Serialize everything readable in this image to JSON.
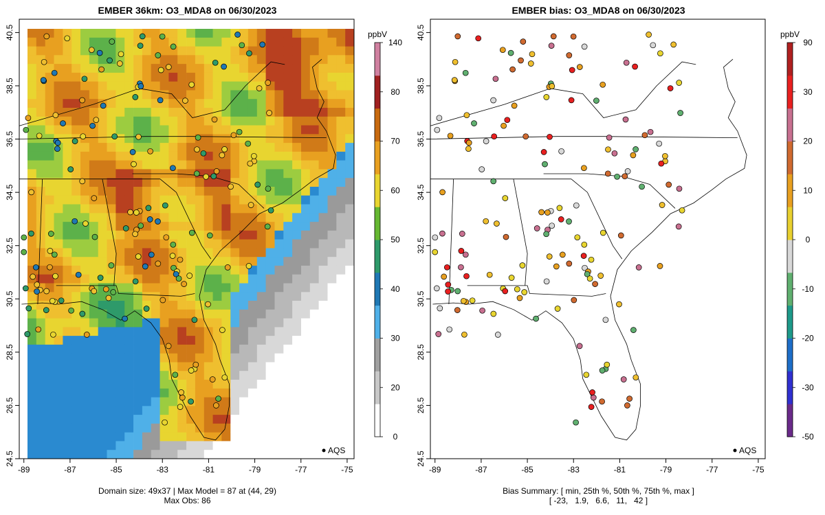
{
  "left_panel": {
    "title": "EMBER 36km: O3_MDA8 on 06/30/2023",
    "caption_line1": "Domain size: 49x37 | Max Model = 87 at (44, 29)",
    "caption_line2": "Max Obs: 86",
    "legend_label": "AQS",
    "colorbar_unit": "ppbV",
    "colorbar_ticks": [
      "140",
      "80",
      "70",
      "60",
      "50",
      "40",
      "30",
      "20",
      "0"
    ],
    "colorbar_colors": [
      "#ffffff",
      "#c8c8c8",
      "#a0a0a0",
      "#4fb0e8",
      "#1f78b4",
      "#2e9a6a",
      "#66b832",
      "#e8d530",
      "#e8a020",
      "#c86a10",
      "#a02020",
      "#d080a0"
    ]
  },
  "right_panel": {
    "title": "EMBER bias: O3_MDA8 on 06/30/2023",
    "caption_line1": "Bias Summary: [ min, 25th %, 50th %, 75th %, max ]",
    "caption_line2": "[ -23,   1.9,   6.6,   11,   42 ]",
    "legend_label": "AQS",
    "colorbar_unit": "ppbV",
    "colorbar_ticks": [
      "90",
      "30",
      "20",
      "10",
      "0",
      "-10",
      "-20",
      "-30",
      "-50"
    ],
    "colorbar_colors": [
      "#6a2a8a",
      "#3030d0",
      "#1e6ec8",
      "#1e9a8a",
      "#60b070",
      "#d8d8d8",
      "#e8d030",
      "#e8a020",
      "#d06a30",
      "#c87090",
      "#e82020",
      "#b02020"
    ]
  },
  "axes": {
    "lon_ticks": [
      "-89",
      "-87",
      "-85",
      "-83",
      "-81",
      "-79",
      "-77",
      "-75"
    ],
    "lat_ticks": [
      "24.5",
      "26.5",
      "28.5",
      "30.5",
      "32.5",
      "34.5",
      "36.5",
      "38.5",
      "40.5"
    ],
    "lon_range": [
      -89.2,
      -74.7
    ],
    "lat_range": [
      24.5,
      41.0
    ]
  },
  "chart_data": [
    {
      "type": "heatmap",
      "title": "EMBER 36km: O3_MDA8 on 06/30/2023",
      "xlabel": "",
      "ylabel": "",
      "xlim": [
        -89.2,
        -74.7
      ],
      "ylim": [
        24.5,
        41.0
      ],
      "colorbar": {
        "label": "ppbV",
        "range": [
          0,
          140
        ]
      },
      "grid_size": "49x37",
      "max_model": 87,
      "max_model_location": [
        44,
        29
      ],
      "max_obs": 86
    },
    {
      "type": "scatter",
      "title": "EMBER bias: O3_MDA8 on 06/30/2023",
      "xlabel": "",
      "ylabel": "",
      "xlim": [
        -89.2,
        -74.7
      ],
      "ylim": [
        24.5,
        41.0
      ],
      "colorbar": {
        "label": "ppbV",
        "range": [
          -50,
          90
        ]
      },
      "bias_summary": {
        "min": -23,
        "p25": 1.9,
        "p50": 6.6,
        "p75": 11,
        "max": 42
      }
    }
  ]
}
